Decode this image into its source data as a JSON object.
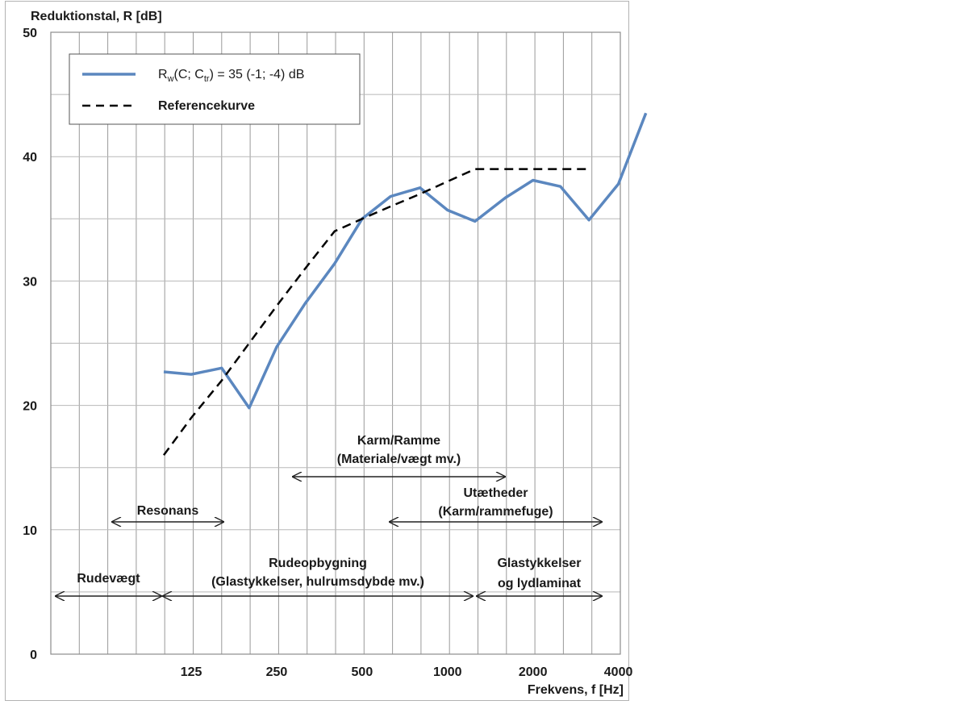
{
  "chart_data": {
    "type": "line",
    "ylabel": "Reduktionstal, R [dB]",
    "xlabel": "Frekvens, f [Hz]",
    "ylim": [
      0,
      50
    ],
    "yticks": [
      0,
      10,
      20,
      30,
      40,
      50
    ],
    "x_tick_labels": [
      "125",
      "250",
      "500",
      "1000",
      "2000",
      "4000"
    ],
    "grid": true,
    "legend_position": "top-left",
    "frequencies": [
      100,
      125,
      160,
      200,
      250,
      315,
      400,
      500,
      630,
      800,
      1000,
      1250,
      1600,
      2000,
      2500,
      3150,
      4000,
      5000
    ],
    "series": [
      {
        "name": "R_w(C; C_tr) = 35 (-1; -4) dB",
        "legend_main": "R",
        "legend_sub1": "w",
        "legend_mid": "(C; C",
        "legend_sub2": "tr",
        "legend_tail": ") = 35 (-1; -4) dB",
        "style": "solid",
        "color": "#5b87bf",
        "x": [
          100,
          125,
          160,
          200,
          250,
          315,
          400,
          500,
          630,
          800,
          1000,
          1250,
          1600,
          2000,
          2500,
          3150,
          4000,
          5000
        ],
        "values": [
          22.7,
          22.5,
          23.0,
          19.8,
          24.7,
          28.2,
          31.4,
          35.0,
          36.8,
          37.5,
          35.7,
          34.8,
          36.7,
          38.1,
          37.6,
          34.9,
          37.8,
          43.5
        ]
      },
      {
        "name": "Referencekurve",
        "style": "dashed",
        "color": "#000000",
        "x": [
          100,
          125,
          160,
          200,
          250,
          315,
          400,
          500,
          630,
          800,
          1000,
          1250,
          1600,
          2000,
          2500,
          3150
        ],
        "values": [
          16,
          19,
          22,
          25,
          28,
          31,
          34,
          35,
          36,
          37,
          38,
          39,
          39,
          39,
          39,
          39
        ]
      }
    ],
    "annotations": [
      {
        "id": "karm",
        "line1": "Karm/Ramme",
        "line2": "(Materiale/vægt mv.)",
        "from_hz": 450,
        "to_hz": 2500
      },
      {
        "id": "resonans",
        "line1": "Resonans",
        "line2": "",
        "from_hz": 100,
        "to_hz": 250
      },
      {
        "id": "utaetheder",
        "line1": "Utætheder",
        "line2": "(Karm/rammefuge)",
        "from_hz": 1000,
        "to_hz": 5000
      },
      {
        "id": "rudevaegt",
        "line1": "Rudevægt",
        "line2": "",
        "from_hz": 50,
        "to_hz": 160
      },
      {
        "id": "rudeopbygning",
        "line1": "Rudeopbygning",
        "line2": "(Glastykkelser, hulrumsdybde mv.)",
        "from_hz": 160,
        "to_hz": 2000
      },
      {
        "id": "glas",
        "line1": "Glastykkelser",
        "line2": "og lydlaminat",
        "from_hz": 2000,
        "to_hz": 5000
      }
    ]
  }
}
